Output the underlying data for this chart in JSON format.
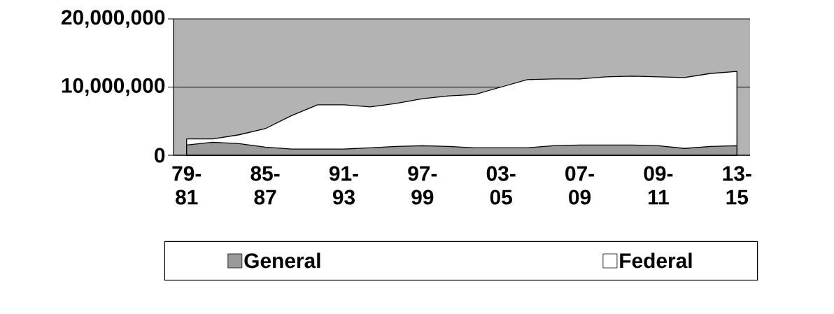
{
  "chart_data": {
    "type": "area",
    "categories": [
      "79-81",
      null,
      null,
      "85-87",
      null,
      null,
      "91-93",
      null,
      null,
      "97-99",
      null,
      null,
      "03-05",
      null,
      null,
      "07-09",
      null,
      null,
      "09-11",
      null,
      null,
      "13-15"
    ],
    "series": [
      {
        "name": "General",
        "color": "#9a9a9a",
        "values": [
          1500000,
          1900000,
          1700000,
          1200000,
          900000,
          900000,
          900000,
          1100000,
          1300000,
          1400000,
          1300000,
          1100000,
          1100000,
          1100000,
          1400000,
          1500000,
          1500000,
          1500000,
          1400000,
          1000000,
          1300000,
          1400000
        ]
      },
      {
        "name": "Federal",
        "color": "#ffffff",
        "values": [
          2400000,
          2400000,
          3000000,
          3900000,
          5800000,
          7400000,
          7400000,
          7100000,
          7600000,
          8300000,
          8700000,
          8900000,
          10000000,
          11100000,
          11200000,
          11200000,
          11500000,
          11600000,
          11500000,
          11400000,
          12000000,
          12300000
        ]
      }
    ],
    "ylim": [
      0,
      20000000
    ],
    "yticks": [
      {
        "value": 0,
        "label": "0"
      },
      {
        "value": 10000000,
        "label": "10,000,000"
      },
      {
        "value": 20000000,
        "label": "20,000,000"
      }
    ],
    "grid": "y",
    "legend": "bottom"
  }
}
